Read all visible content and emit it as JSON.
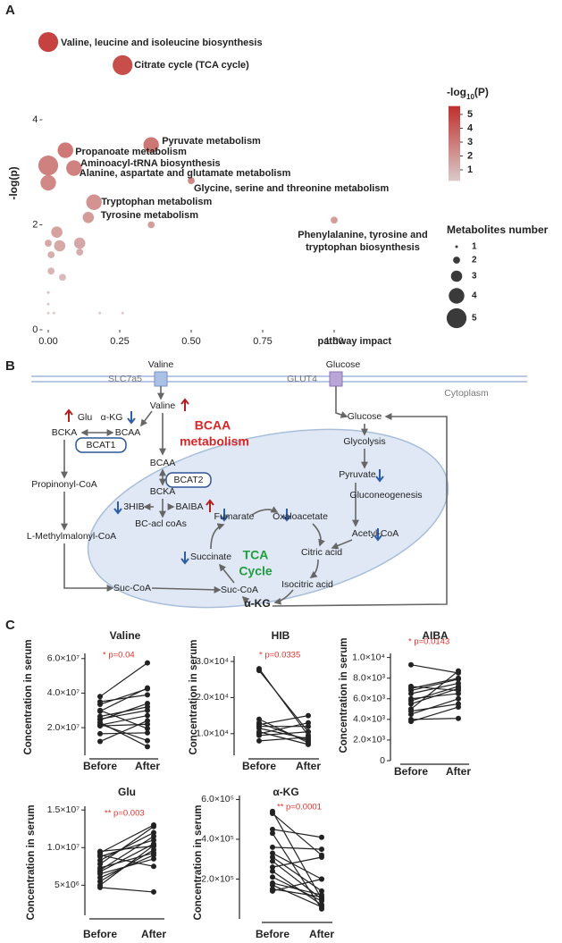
{
  "panels": [
    "A",
    "B",
    "C"
  ],
  "chart_data": [
    {
      "type": "scatter",
      "xlabel": "pathway impact",
      "ylabel": "-log(p)",
      "x": [
        0,
        0.26,
        0.36,
        0.06,
        0,
        0.09,
        0.5,
        0.16,
        0.14,
        1.0,
        0,
        0.36,
        0.03,
        0,
        0.04,
        0.11,
        0.01,
        0.11,
        0.01,
        0.05,
        0,
        0,
        0,
        0.02,
        0.18,
        0.26
      ],
      "y": [
        5.48,
        5.04,
        3.52,
        3.42,
        3.13,
        3.08,
        2.84,
        2.43,
        2.14,
        2.09,
        2.8,
        2.0,
        1.86,
        1.65,
        1.6,
        1.65,
        1.43,
        1.48,
        1.12,
        1.0,
        0.71,
        0.49,
        0.32,
        0.32,
        0.32,
        0.32
      ],
      "sizes": [
        5,
        5,
        4,
        4,
        5,
        4,
        2,
        4,
        3,
        2,
        4,
        2,
        3,
        2,
        3,
        3,
        2,
        2,
        2,
        2,
        1,
        1,
        1,
        1,
        1,
        1
      ],
      "labels": [
        "Valine, leucine and isoleucine biosynthesis",
        "Citrate cycle (TCA cycle)",
        "Pyruvate metabolism",
        "Propanoate metabolism",
        "Aminoacyl-tRNA biosynthesis",
        "Alanine, aspartate and glutamate metabolism",
        "Glycine, serine and threonine metabolism",
        "Tryptophan metabolism",
        "Tyrosine metabolism",
        [
          "Phenylalanine, tyrosine and",
          "tryptophan biosynthesis"
        ],
        null,
        null,
        null,
        null,
        null,
        null,
        null,
        null,
        null,
        null,
        null,
        null,
        null,
        null,
        null,
        null
      ],
      "xlim": [
        -0.03,
        1.05
      ],
      "ylim": [
        0,
        5.6
      ],
      "xticks": [
        {
          "value": 0,
          "label": "0.00"
        },
        {
          "value": 0.25,
          "label": "0.25"
        },
        {
          "value": 0.5,
          "label": "0.50"
        },
        {
          "value": 0.75,
          "label": "0.75"
        },
        {
          "value": 1,
          "label": "1.00"
        }
      ],
      "yticks": [
        0,
        2,
        4
      ],
      "colorbar": {
        "title": [
          "-log",
          "10",
          "(P)"
        ],
        "ticks": [
          1,
          2,
          3,
          4,
          5
        ],
        "lim": [
          0.2,
          5.6
        ],
        "colors": [
          "#dacaca",
          "#bf2f2c"
        ]
      },
      "size_legend": {
        "title": "Metabolites number",
        "values": [
          1,
          2,
          3,
          4,
          5
        ]
      }
    },
    {
      "type": "paired",
      "title": "Valine",
      "ylabel": "Concentration in serum",
      "annotation": "* p=0.04",
      "categories": [
        "Before",
        "After"
      ],
      "ylim": [
        4000000,
        63000000
      ],
      "yticks": [
        {
          "value": 20000000,
          "label": "2.0×10⁷"
        },
        {
          "value": 40000000,
          "label": "4.0×10⁷"
        },
        {
          "value": 60000000,
          "label": "6.0×10⁷"
        }
      ],
      "pairs": [
        [
          12000000,
          24000000
        ],
        [
          16500000,
          17000000
        ],
        [
          21000000,
          22000000
        ],
        [
          21500000,
          27000000
        ],
        [
          22000000,
          12500000
        ],
        [
          24500000,
          34000000
        ],
        [
          25000000,
          30000000
        ],
        [
          26500000,
          32000000
        ],
        [
          29500000,
          43000000
        ],
        [
          33500000,
          42500000
        ],
        [
          35000000,
          39000000
        ],
        [
          38000000,
          57500000
        ],
        [
          30000000,
          19500000
        ],
        [
          23000000,
          9000000
        ]
      ]
    },
    {
      "type": "paired",
      "title": "HIB",
      "ylabel": "Concentration in serum",
      "annotation": "* p=0.0335",
      "categories": [
        "Before",
        "After"
      ],
      "ylim": [
        4000,
        31500
      ],
      "yticks": [
        {
          "value": 10000,
          "label": "1.0×10⁴"
        },
        {
          "value": 20000,
          "label": "2.0×10⁴"
        },
        {
          "value": 30000,
          "label": "3.0×10⁴"
        }
      ],
      "pairs": [
        [
          27500,
          10500
        ],
        [
          28000,
          9500
        ],
        [
          13000,
          8000
        ],
        [
          12500,
          15000
        ],
        [
          14000,
          7500
        ],
        [
          10000,
          13000
        ],
        [
          11500,
          8500
        ],
        [
          9500,
          10500
        ],
        [
          12000,
          12000
        ],
        [
          8000,
          9000
        ],
        [
          10500,
          7000
        ]
      ]
    },
    {
      "type": "paired",
      "title": "AIBA",
      "ylabel": "Concentration in serum",
      "annotation": "* p=0.0143",
      "categories": [
        "Before",
        "After"
      ],
      "ylim": [
        0,
        10400
      ],
      "yticks": [
        0,
        {
          "value": 2000,
          "label": "2.0×10³"
        },
        {
          "value": 4000,
          "label": "4.0×10³"
        },
        {
          "value": 6000,
          "label": "6.0×10³"
        },
        {
          "value": 8000,
          "label": "8.0×10³"
        },
        {
          "value": 10000,
          "label": "1.0×10⁴"
        }
      ],
      "pairs": [
        [
          9300,
          8500
        ],
        [
          5000,
          8700
        ],
        [
          4000,
          4100
        ],
        [
          5500,
          7000
        ],
        [
          6500,
          7500
        ],
        [
          7000,
          8000
        ],
        [
          6000,
          6500
        ],
        [
          5800,
          7200
        ],
        [
          4800,
          5500
        ],
        [
          6800,
          7900
        ],
        [
          7200,
          6800
        ],
        [
          4500,
          6000
        ],
        [
          3800,
          5200
        ]
      ]
    },
    {
      "type": "paired",
      "title": "Glu",
      "ylabel": "Concentration in serum",
      "annotation": "** p=0.003",
      "categories": [
        "Before",
        "After"
      ],
      "ylim": [
        1000000,
        15500000
      ],
      "yticks": [
        {
          "value": 5000000,
          "label": "5×10⁶"
        },
        {
          "value": 10000000,
          "label": "1.0×10⁷"
        },
        {
          "value": 15000000,
          "label": "1.5×10⁷"
        }
      ],
      "pairs": [
        [
          4700000,
          4100000
        ],
        [
          5000000,
          10300000
        ],
        [
          5500000,
          9700000
        ],
        [
          6000000,
          9000000
        ],
        [
          6800000,
          10500000
        ],
        [
          7000000,
          11500000
        ],
        [
          7300000,
          9300000
        ],
        [
          7800000,
          12800000
        ],
        [
          8300000,
          12000000
        ],
        [
          8800000,
          11000000
        ],
        [
          9300000,
          13000000
        ],
        [
          9500000,
          10200000
        ],
        [
          9000000,
          7500000
        ],
        [
          6500000,
          8500000
        ]
      ]
    },
    {
      "type": "paired",
      "title": "α-KG",
      "ylabel": "Concentration in serum",
      "annotation": "** p=0.0001",
      "categories": [
        "Before",
        "After"
      ],
      "ylim": [
        0,
        620000
      ],
      "yticks": [
        {
          "value": 200000,
          "label": "2.0×10⁵"
        },
        {
          "value": 400000,
          "label": "4.0×10⁵"
        },
        {
          "value": 600000,
          "label": "6.0×10⁵"
        }
      ],
      "pairs": [
        [
          540000,
          100000
        ],
        [
          530000,
          320000
        ],
        [
          450000,
          410000
        ],
        [
          430000,
          50000
        ],
        [
          360000,
          350000
        ],
        [
          330000,
          200000
        ],
        [
          310000,
          140000
        ],
        [
          290000,
          100000
        ],
        [
          260000,
          310000
        ],
        [
          240000,
          70000
        ],
        [
          210000,
          90000
        ],
        [
          180000,
          120000
        ],
        [
          150000,
          110000
        ],
        [
          170000,
          60000
        ],
        [
          140000,
          200000
        ]
      ]
    }
  ],
  "diagram": {
    "labels": [
      "SLC7a5",
      "Valine",
      "GLUT4",
      "Glucose",
      "Cytoplasm",
      "Glu",
      "α-KG",
      "BCKA",
      "BCAA",
      "BCAT1",
      "Valine",
      "BCAA",
      "metabolism",
      "BCAA",
      "BCAT2",
      "BCKA",
      "3HIB",
      "BAIBA",
      "BC-acl coAs",
      "Propinonyl-CoA",
      "L-Methylmalonyl-CoA",
      "Suc-CoA",
      "Suc-CoA",
      "Succinate",
      "TCA",
      "Cycle",
      "Fumarate",
      "Oxaloacetate",
      "Citric acid",
      "Isocitric acid",
      "α-KG",
      "Acetyl-CoA",
      "Glucose",
      "Glycolysis",
      "Pyruvate",
      "Gluconeogenesis"
    ]
  }
}
